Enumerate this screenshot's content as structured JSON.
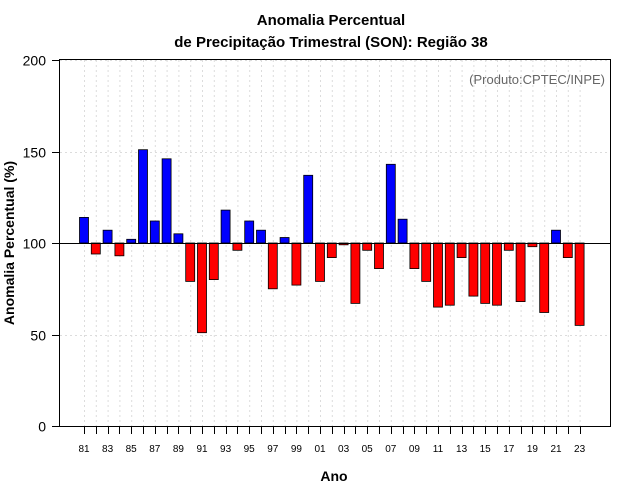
{
  "chart_data": {
    "type": "bar",
    "title_line1": "Anomalia Percentual",
    "title_line2": "de Precipitação Trimestral (SON): Região 38",
    "xlabel": "Ano",
    "ylabel": "Anomalia Percentual (%)",
    "credit": "(Produto:CPTEC/INPE)",
    "baseline": 100,
    "ylim": [
      0,
      200
    ],
    "yticks": [
      0,
      50,
      100,
      150,
      200
    ],
    "xtick_labels": [
      "81",
      "83",
      "85",
      "87",
      "89",
      "91",
      "93",
      "95",
      "97",
      "99",
      "01",
      "03",
      "05",
      "07",
      "09",
      "11",
      "13",
      "15",
      "17",
      "19",
      "21",
      "23"
    ],
    "years": [
      1981,
      1982,
      1983,
      1984,
      1985,
      1986,
      1987,
      1988,
      1989,
      1990,
      1991,
      1992,
      1993,
      1994,
      1995,
      1996,
      1997,
      1998,
      1999,
      2000,
      2001,
      2002,
      2003,
      2004,
      2005,
      2006,
      2007,
      2008,
      2009,
      2010,
      2011,
      2012,
      2013,
      2014,
      2015,
      2016,
      2017,
      2018,
      2019,
      2020,
      2021,
      2022,
      2023
    ],
    "values": [
      114,
      94,
      107,
      93,
      102,
      151,
      112,
      146,
      105,
      79,
      51,
      80,
      118,
      96,
      112,
      107,
      75,
      103,
      77,
      137,
      79,
      92,
      99,
      67,
      96,
      86,
      143,
      113,
      86,
      79,
      65,
      66,
      92,
      71,
      67,
      66,
      96,
      68,
      98,
      62,
      107,
      92,
      55
    ],
    "colors": {
      "above": "#0000ff",
      "below": "#ff0000"
    }
  }
}
